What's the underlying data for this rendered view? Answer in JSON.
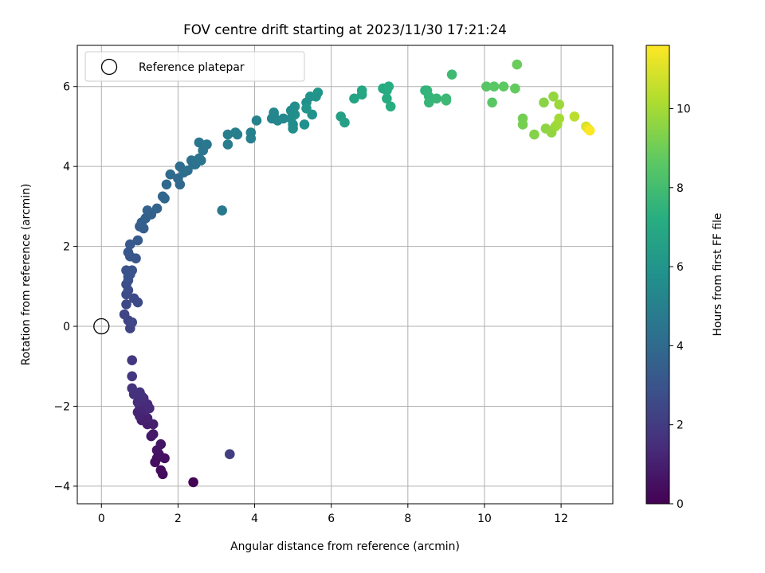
{
  "chart_data": {
    "type": "scatter",
    "title": "FOV centre drift starting at 2023/11/30 17:21:24",
    "xlabel": "Angular distance from reference (arcmin)",
    "ylabel": "Rotation from reference (arcmin)",
    "xlim": [
      -0.63,
      13.35
    ],
    "ylim": [
      -4.44,
      7.03
    ],
    "xticks": [
      0,
      2,
      4,
      6,
      8,
      10,
      12
    ],
    "yticks": [
      -4,
      -2,
      0,
      2,
      4,
      6
    ],
    "grid": true,
    "legend": {
      "placement": "top-left",
      "entries": [
        "Reference platepar"
      ]
    },
    "reference_point": {
      "x": 0,
      "y": 0,
      "label": "Reference platepar"
    },
    "colorbar": {
      "label": "Hours from first FF file",
      "colormap": "viridis",
      "range": [
        0,
        11.6
      ],
      "ticks": [
        0,
        2,
        4,
        6,
        8,
        10
      ]
    },
    "series": [
      {
        "points": [
          [
            2.4,
            -3.9,
            0.05
          ],
          [
            1.6,
            -3.7,
            0.3
          ],
          [
            1.55,
            -3.6,
            0.35
          ],
          [
            1.4,
            -3.4,
            0.4
          ],
          [
            1.45,
            -3.3,
            0.45
          ],
          [
            1.65,
            -3.3,
            0.5
          ],
          [
            1.5,
            -3.2,
            0.55
          ],
          [
            1.45,
            -3.1,
            0.6
          ],
          [
            1.55,
            -2.95,
            0.65
          ],
          [
            1.3,
            -2.75,
            0.7
          ],
          [
            1.35,
            -2.7,
            0.8
          ],
          [
            1.2,
            -2.45,
            0.9
          ],
          [
            1.35,
            -2.45,
            0.95
          ],
          [
            1.05,
            -2.35,
            1.0
          ],
          [
            1.2,
            -2.3,
            1.05
          ],
          [
            1.0,
            -2.25,
            1.1
          ],
          [
            0.95,
            -2.15,
            1.2
          ],
          [
            1.15,
            -2.1,
            1.25
          ],
          [
            1.0,
            -2.0,
            1.3
          ],
          [
            1.2,
            -1.95,
            1.35
          ],
          [
            1.25,
            -2.05,
            1.4
          ],
          [
            0.95,
            -1.9,
            1.45
          ],
          [
            1.1,
            -1.8,
            1.5
          ],
          [
            1.05,
            -1.75,
            1.55
          ],
          [
            0.85,
            -1.7,
            1.6
          ],
          [
            1.0,
            -1.65,
            1.65
          ],
          [
            0.8,
            -1.55,
            1.7
          ],
          [
            0.8,
            -1.25,
            1.8
          ],
          [
            0.8,
            -0.85,
            1.9
          ],
          [
            3.35,
            -3.2,
            2.1
          ],
          [
            0.75,
            -0.05,
            2.3
          ],
          [
            0.7,
            0.15,
            2.35
          ],
          [
            0.6,
            0.3,
            2.4
          ],
          [
            0.8,
            0.1,
            2.45
          ],
          [
            0.65,
            0.55,
            2.5
          ],
          [
            0.85,
            0.7,
            2.55
          ],
          [
            0.95,
            0.6,
            2.6
          ],
          [
            0.65,
            0.8,
            2.65
          ],
          [
            0.7,
            0.9,
            2.7
          ],
          [
            0.65,
            1.05,
            2.75
          ],
          [
            0.7,
            1.15,
            2.8
          ],
          [
            0.75,
            1.3,
            2.85
          ],
          [
            0.65,
            1.4,
            2.9
          ],
          [
            0.8,
            1.4,
            2.95
          ],
          [
            0.7,
            1.25,
            3.0
          ],
          [
            0.75,
            1.75,
            3.05
          ],
          [
            0.9,
            1.7,
            3.1
          ],
          [
            0.7,
            1.85,
            3.15
          ],
          [
            0.75,
            2.05,
            3.2
          ],
          [
            0.95,
            2.15,
            3.3
          ],
          [
            1.0,
            2.5,
            3.4
          ],
          [
            1.1,
            2.45,
            3.45
          ],
          [
            1.05,
            2.6,
            3.5
          ],
          [
            1.15,
            2.7,
            3.55
          ],
          [
            1.3,
            2.8,
            3.6
          ],
          [
            1.2,
            2.9,
            3.65
          ],
          [
            1.45,
            2.95,
            3.7
          ],
          [
            1.6,
            3.25,
            3.8
          ],
          [
            1.65,
            3.2,
            3.85
          ],
          [
            1.7,
            3.55,
            3.9
          ],
          [
            2.05,
            3.55,
            3.95
          ],
          [
            2.0,
            3.7,
            4.0
          ],
          [
            1.8,
            3.8,
            4.05
          ],
          [
            2.05,
            4.0,
            4.1
          ],
          [
            2.15,
            3.85,
            4.15
          ],
          [
            2.25,
            3.9,
            4.2
          ],
          [
            2.4,
            4.05,
            4.25
          ],
          [
            2.35,
            4.15,
            4.3
          ],
          [
            2.45,
            4.05,
            4.35
          ],
          [
            2.6,
            4.15,
            4.4
          ],
          [
            2.55,
            4.2,
            4.45
          ],
          [
            2.65,
            4.4,
            4.5
          ],
          [
            2.55,
            4.6,
            4.55
          ],
          [
            2.75,
            4.55,
            4.6
          ],
          [
            3.15,
            2.9,
            4.7
          ],
          [
            3.3,
            4.55,
            4.8
          ],
          [
            3.3,
            4.8,
            4.85
          ],
          [
            3.55,
            4.8,
            4.9
          ],
          [
            3.5,
            4.85,
            4.95
          ],
          [
            3.9,
            4.7,
            5.0
          ],
          [
            3.9,
            4.85,
            5.05
          ],
          [
            4.05,
            5.15,
            5.1
          ],
          [
            4.45,
            5.2,
            5.2
          ],
          [
            4.5,
            5.3,
            5.25
          ],
          [
            4.6,
            5.15,
            5.3
          ],
          [
            4.5,
            5.35,
            5.35
          ],
          [
            4.75,
            5.2,
            5.4
          ],
          [
            4.95,
            5.2,
            5.45
          ],
          [
            4.95,
            5.4,
            5.5
          ],
          [
            5.0,
            5.05,
            5.55
          ],
          [
            5.0,
            4.95,
            5.6
          ],
          [
            5.05,
            5.3,
            5.65
          ],
          [
            5.05,
            5.5,
            5.7
          ],
          [
            5.3,
            5.05,
            5.75
          ],
          [
            5.35,
            5.6,
            5.8
          ],
          [
            5.5,
            5.3,
            5.85
          ],
          [
            5.45,
            5.75,
            5.9
          ],
          [
            5.6,
            5.75,
            5.95
          ],
          [
            5.65,
            5.85,
            6.0
          ],
          [
            5.35,
            5.45,
            6.05
          ],
          [
            6.25,
            5.25,
            6.5
          ],
          [
            6.35,
            5.1,
            6.55
          ],
          [
            6.6,
            5.7,
            6.7
          ],
          [
            6.8,
            5.8,
            6.8
          ],
          [
            6.8,
            5.9,
            6.85
          ],
          [
            7.35,
            5.95,
            7.0
          ],
          [
            7.45,
            5.9,
            7.05
          ],
          [
            7.45,
            5.7,
            7.1
          ],
          [
            7.5,
            6.0,
            7.15
          ],
          [
            7.55,
            5.5,
            7.2
          ],
          [
            8.45,
            5.9,
            7.5
          ],
          [
            8.5,
            5.9,
            7.55
          ],
          [
            8.55,
            5.75,
            7.6
          ],
          [
            8.55,
            5.6,
            7.65
          ],
          [
            8.75,
            5.7,
            7.7
          ],
          [
            9.0,
            5.7,
            7.8
          ],
          [
            9.0,
            5.65,
            7.85
          ],
          [
            9.15,
            6.3,
            7.9
          ],
          [
            10.05,
            6.0,
            8.5
          ],
          [
            10.2,
            5.6,
            8.55
          ],
          [
            10.25,
            6.0,
            8.6
          ],
          [
            10.5,
            6.0,
            8.7
          ],
          [
            10.8,
            5.95,
            8.8
          ],
          [
            10.85,
            6.55,
            8.9
          ],
          [
            11.0,
            5.2,
            9.1
          ],
          [
            11.0,
            5.05,
            9.15
          ],
          [
            11.3,
            4.8,
            9.4
          ],
          [
            11.55,
            5.6,
            9.5
          ],
          [
            11.6,
            4.95,
            9.6
          ],
          [
            11.75,
            4.85,
            9.65
          ],
          [
            11.8,
            5.75,
            9.7
          ],
          [
            11.85,
            5.0,
            9.8
          ],
          [
            11.95,
            5.55,
            9.85
          ],
          [
            11.9,
            5.05,
            9.9
          ],
          [
            11.95,
            5.2,
            10.0
          ],
          [
            12.35,
            5.25,
            10.4
          ],
          [
            12.65,
            5.0,
            10.9
          ],
          [
            12.7,
            4.95,
            11.2
          ],
          [
            12.75,
            4.9,
            11.6
          ]
        ]
      }
    ]
  }
}
